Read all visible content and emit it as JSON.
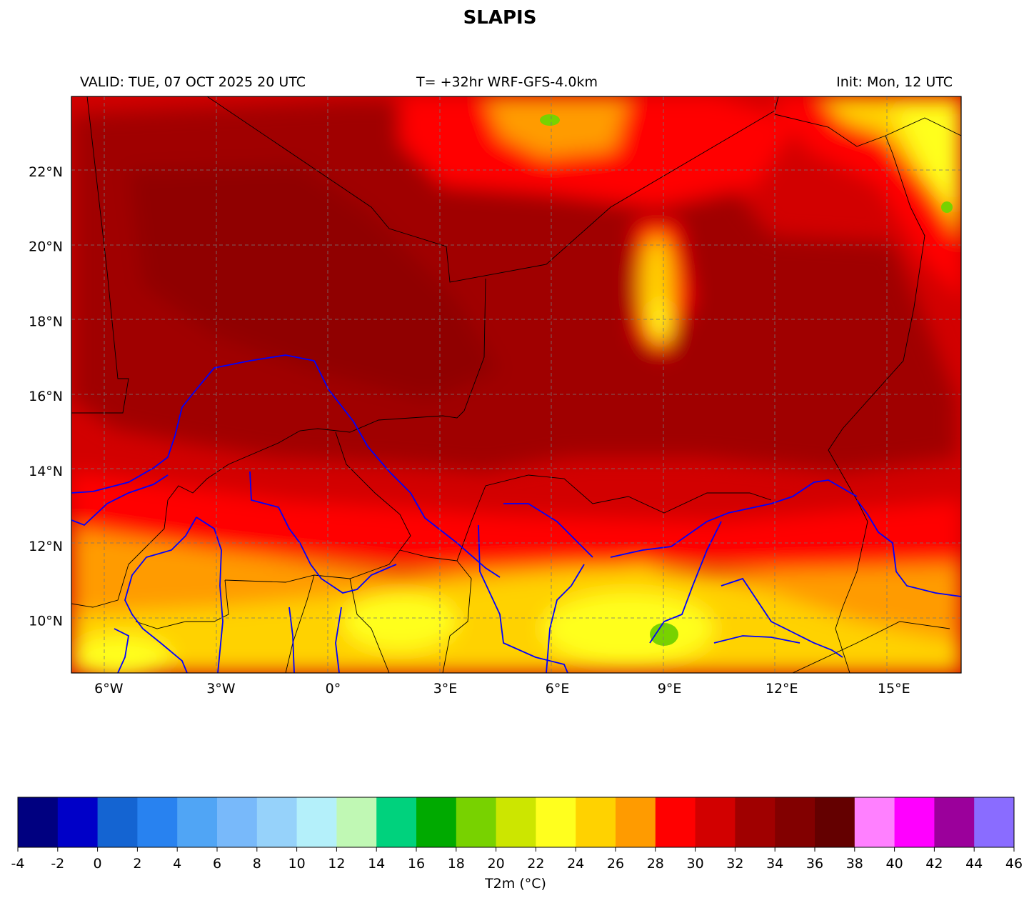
{
  "header": {
    "title": "SLAPIS",
    "valid": "VALID: TUE, 07 OCT 2025 20 UTC",
    "forecast": "T= +32hr WRF-GFS-4.0km",
    "init": "Init: Mon, 12 UTC"
  },
  "map": {
    "lon_range": [
      -7.0,
      16.8
    ],
    "lat_range": [
      8.6,
      24.0
    ],
    "lon_ticks": [
      {
        "value": -6,
        "label": "6°W"
      },
      {
        "value": -3,
        "label": "3°W"
      },
      {
        "value": 0,
        "label": "0°"
      },
      {
        "value": 3,
        "label": "3°E"
      },
      {
        "value": 6,
        "label": "6°E"
      },
      {
        "value": 9,
        "label": "9°E"
      },
      {
        "value": 12,
        "label": "12°E"
      },
      {
        "value": 15,
        "label": "15°E"
      }
    ],
    "lat_ticks": [
      {
        "value": 22,
        "label": "22°N"
      },
      {
        "value": 20,
        "label": "20°N"
      },
      {
        "value": 18,
        "label": "18°N"
      },
      {
        "value": 16,
        "label": "16°N"
      },
      {
        "value": 14,
        "label": "14°N"
      },
      {
        "value": 12,
        "label": "12°N"
      },
      {
        "value": 10,
        "label": "10°N"
      }
    ],
    "gridlines": true,
    "river_color": "#0000ff",
    "border_color": "#000000"
  },
  "colorbar": {
    "label": "T2m (°C)",
    "ticks": [
      "-4",
      "-2",
      "0",
      "2",
      "4",
      "6",
      "8",
      "10",
      "12",
      "14",
      "16",
      "18",
      "20",
      "22",
      "24",
      "26",
      "28",
      "30",
      "32",
      "34",
      "36",
      "38",
      "40",
      "42",
      "44",
      "46"
    ],
    "colors": [
      "#000080",
      "#0000c8",
      "#1464d2",
      "#2882f0",
      "#50a5f5",
      "#78b9fa",
      "#96d2fa",
      "#b4f0fa",
      "#c0f8b4",
      "#00d27d",
      "#00aa00",
      "#78d200",
      "#cce600",
      "#ffff1e",
      "#ffd200",
      "#ff9b00",
      "#ff0000",
      "#d20000",
      "#a00000",
      "#820000",
      "#640000",
      "#ff80ff",
      "#ff00ff",
      "#9b009b",
      "#8a6cff"
    ]
  }
}
